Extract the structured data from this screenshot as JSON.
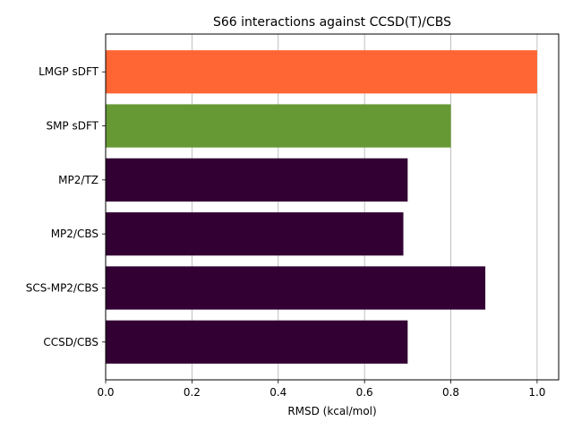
{
  "chart_data": {
    "type": "bar",
    "orientation": "horizontal",
    "title": "S66 interactions against CCSD(T)/CBS",
    "xlabel": "RMSD (kcal/mol)",
    "ylabel": "",
    "xlim": [
      0,
      1.05
    ],
    "xticks": [
      0.0,
      0.2,
      0.4,
      0.6,
      0.8,
      1.0
    ],
    "xtick_labels": [
      "0.0",
      "0.2",
      "0.4",
      "0.6",
      "0.8",
      "1.0"
    ],
    "grid": "vertical",
    "categories": [
      "LMGP sDFT",
      "SMP sDFT",
      "MP2/TZ",
      "MP2/CBS",
      "SCS-MP2/CBS",
      "CCSD/CBS"
    ],
    "values": [
      1.0,
      0.8,
      0.7,
      0.69,
      0.88,
      0.7
    ],
    "colors": [
      "#ff6633",
      "#669933",
      "#330033",
      "#330033",
      "#330033",
      "#330033"
    ]
  }
}
